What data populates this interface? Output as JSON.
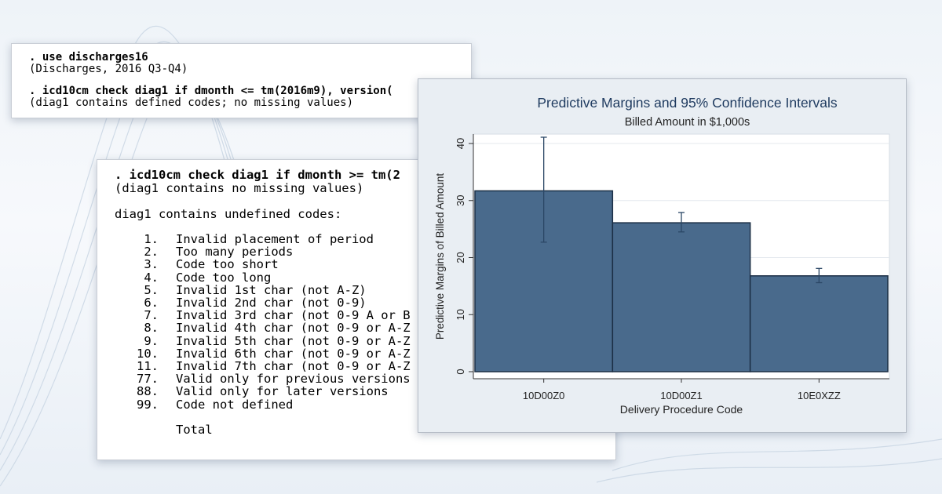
{
  "log_panel_top": {
    "lines": [
      {
        "text": ". use discharges16",
        "kind": "command"
      },
      {
        "text": "(Discharges, 2016 Q3-Q4)",
        "kind": "output"
      },
      {
        "text": ". icd10cm check diag1 if dmonth <= tm(2016m9), version(",
        "kind": "command"
      },
      {
        "text": "(diag1 contains defined codes; no missing values)",
        "kind": "output"
      }
    ]
  },
  "log_panel_main": {
    "command": ". icd10cm check diag1 if dmonth >= tm(2",
    "note": "(diag1 contains no missing values)",
    "heading": "diag1 contains undefined codes:",
    "codes": [
      {
        "num": "1.",
        "desc": "Invalid placement of period"
      },
      {
        "num": "2.",
        "desc": "Too many periods"
      },
      {
        "num": "3.",
        "desc": "Code too short"
      },
      {
        "num": "4.",
        "desc": "Code too long"
      },
      {
        "num": "5.",
        "desc": "Invalid 1st char (not A-Z)"
      },
      {
        "num": "6.",
        "desc": "Invalid 2nd char (not 0-9)"
      },
      {
        "num": "7.",
        "desc": "Invalid 3rd char (not 0-9 A or B"
      },
      {
        "num": "8.",
        "desc": "Invalid 4th char (not 0-9 or A-Z"
      },
      {
        "num": "9.",
        "desc": "Invalid 5th char (not 0-9 or A-Z"
      },
      {
        "num": "10.",
        "desc": "Invalid 6th char (not 0-9 or A-Z"
      },
      {
        "num": "11.",
        "desc": "Invalid 7th char (not 0-9 or A-Z"
      },
      {
        "num": "77.",
        "desc": "Valid only for previous versions"
      },
      {
        "num": "88.",
        "desc": "Valid only for later versions"
      },
      {
        "num": "99.",
        "desc": "Code not defined"
      }
    ],
    "total_label": "Total"
  },
  "colors": {
    "bar_fill": "#496a8c",
    "bar_stroke": "#1c2f45",
    "plot_background": "#ffffff",
    "chart_frame_background": "#e9eef3",
    "grid": "#e4e9ee",
    "title_color": "#1e3a5f"
  },
  "chart_data": {
    "type": "bar",
    "title": "Predictive Margins and 95% Confidence Intervals",
    "subtitle": "Billed Amount in $1,000s",
    "xlabel": "Delivery Procedure Code",
    "ylabel": "Predictive Margins of Billed Amount",
    "categories": [
      "10D00Z0",
      "10D00Z1",
      "10E0XZZ"
    ],
    "values": [
      31.7,
      26.1,
      16.8
    ],
    "ci_lower": [
      22.7,
      24.5,
      15.6
    ],
    "ci_upper": [
      41.1,
      27.9,
      18.1
    ],
    "ylim": [
      0,
      40
    ],
    "yticks": [
      0,
      10,
      20,
      30,
      40
    ],
    "grid": true,
    "legend": "none"
  }
}
